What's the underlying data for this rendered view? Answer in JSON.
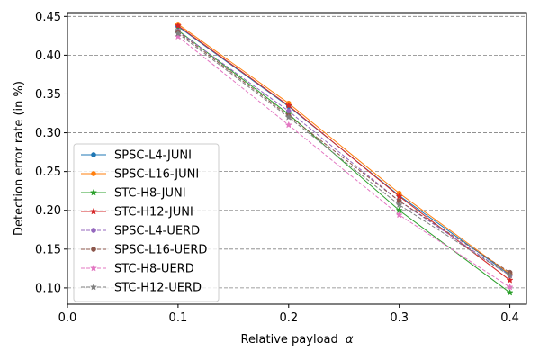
{
  "chart_data": {
    "type": "line",
    "xlabel": "Relative payload",
    "xlabel_symbol": "α",
    "ylabel": "Detection error rate (in %)",
    "xlim": [
      0.0,
      0.415
    ],
    "ylim": [
      0.079,
      0.455
    ],
    "xticks": [
      0.0,
      0.1,
      0.2,
      0.3,
      0.4
    ],
    "xtick_labels": [
      "0.0",
      "0.1",
      "0.2",
      "0.3",
      "0.4"
    ],
    "yticks": [
      0.1,
      0.15,
      0.2,
      0.25,
      0.3,
      0.35,
      0.4,
      0.45
    ],
    "ytick_labels": [
      "0.10",
      "0.15",
      "0.20",
      "0.25",
      "0.30",
      "0.35",
      "0.40",
      "0.45"
    ],
    "grid": "horizontal-dashed",
    "legend_position": "lower-left",
    "x": [
      0.1,
      0.2,
      0.3,
      0.4
    ],
    "series": [
      {
        "name": "SPSC-L4-JUNI",
        "values": [
          0.437,
          0.334,
          0.219,
          0.117
        ],
        "color": "#1f77b4",
        "dash": "solid",
        "marker": "circle"
      },
      {
        "name": "SPSC-L16-JUNI",
        "values": [
          0.44,
          0.338,
          0.222,
          0.118
        ],
        "color": "#ff7f0e",
        "dash": "solid",
        "marker": "circle"
      },
      {
        "name": "STC-H8-JUNI",
        "values": [
          0.432,
          0.324,
          0.2,
          0.094
        ],
        "color": "#2ca02c",
        "dash": "solid",
        "marker": "star"
      },
      {
        "name": "STC-H12-JUNI",
        "values": [
          0.438,
          0.335,
          0.218,
          0.11
        ],
        "color": "#d62728",
        "dash": "solid",
        "marker": "star"
      },
      {
        "name": "SPSC-L4-UERD",
        "values": [
          0.431,
          0.328,
          0.212,
          0.116
        ],
        "color": "#9467bd",
        "dash": "dashed",
        "marker": "circle"
      },
      {
        "name": "SPSC-L16-UERD",
        "values": [
          0.43,
          0.322,
          0.212,
          0.12
        ],
        "color": "#8c564b",
        "dash": "dashed",
        "marker": "circle"
      },
      {
        "name": "STC-H8-UERD",
        "values": [
          0.424,
          0.31,
          0.194,
          0.101
        ],
        "color": "#e377c2",
        "dash": "dashed",
        "marker": "star"
      },
      {
        "name": "STC-H12-UERD",
        "values": [
          0.428,
          0.32,
          0.207,
          0.116
        ],
        "color": "#7f7f7f",
        "dash": "dashed",
        "marker": "star"
      }
    ]
  }
}
